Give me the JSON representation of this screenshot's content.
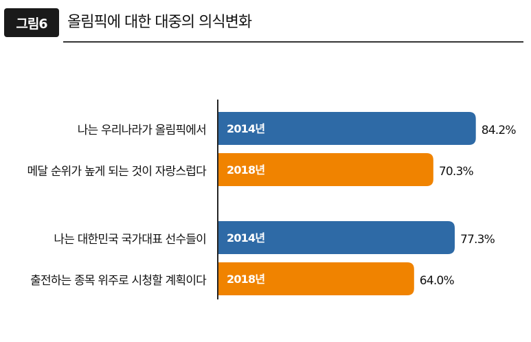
{
  "figure": {
    "badge": "그림6",
    "title": "올림픽에 대한 대중의 의식변화"
  },
  "chart_data": {
    "type": "bar",
    "orientation": "horizontal",
    "title": "올림픽에 대한 대중의 의식변화",
    "categories": [
      [
        "나는 우리나라가 올림픽에서",
        "메달 순위가 높게 되는 것이 자랑스럽다"
      ],
      [
        "나는 대한민국 국가대표 선수들이",
        "출전하는 종목 위주로 시청할 계획이다"
      ]
    ],
    "series": [
      {
        "name": "2014년",
        "color": "#2e6aa6",
        "values": [
          84.2,
          77.3
        ],
        "value_labels": [
          "84.2%",
          "77.3%"
        ]
      },
      {
        "name": "2018년",
        "color": "#f08300",
        "values": [
          70.3,
          64.0
        ],
        "value_labels": [
          "70.3%",
          "64.0%"
        ]
      }
    ],
    "xlim": [
      0,
      100
    ],
    "grid": false,
    "legend": "inside-bars"
  }
}
